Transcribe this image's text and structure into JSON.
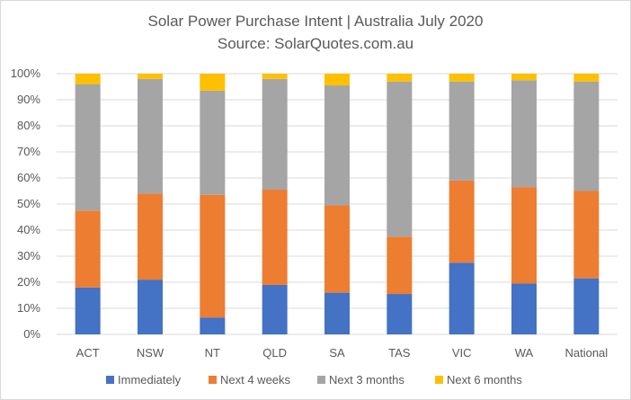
{
  "chart_data": {
    "type": "bar",
    "stacked": "percent",
    "title": "Solar Power Purchase Intent | Australia July 2020",
    "subtitle": "Source: SolarQuotes.com.au",
    "categories": [
      "ACT",
      "NSW",
      "NT",
      "QLD",
      "SA",
      "TAS",
      "VIC",
      "WA",
      "National"
    ],
    "series": [
      {
        "name": "Immediately",
        "color": "#4472C4",
        "values": [
          18,
          21,
          6.5,
          19,
          16,
          15.5,
          27.5,
          19.5,
          21.5
        ]
      },
      {
        "name": "Next 4 weeks",
        "color": "#ED7D31",
        "values": [
          29.5,
          33,
          47,
          36.5,
          33.5,
          22,
          31.5,
          37,
          33.5
        ]
      },
      {
        "name": "Next 3 months",
        "color": "#A5A5A5",
        "values": [
          48.5,
          44,
          40,
          42.5,
          46,
          59.5,
          38,
          41,
          42
        ]
      },
      {
        "name": "Next 6 months",
        "color": "#FFC000",
        "values": [
          4,
          2,
          6.5,
          2,
          4.5,
          3,
          3,
          2.5,
          3
        ]
      }
    ],
    "ylim": [
      0,
      100
    ],
    "yticks": [
      "0%",
      "10%",
      "20%",
      "30%",
      "40%",
      "50%",
      "60%",
      "70%",
      "80%",
      "90%",
      "100%"
    ],
    "grid": true,
    "legend_position": "bottom"
  }
}
